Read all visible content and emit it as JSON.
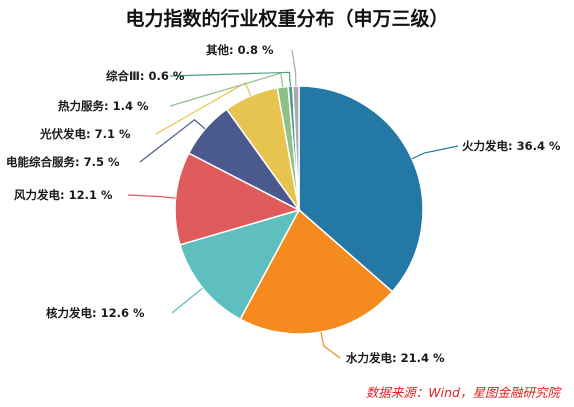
{
  "chart_data": {
    "type": "pie",
    "title": "电力指数的行业权重分布（申万三级）",
    "categories": [
      "火力发电",
      "水力发电",
      "核力发电",
      "风力发电",
      "电能综合服务",
      "光伏发电",
      "热力服务",
      "综合Ⅲ",
      "其他"
    ],
    "values": [
      36.4,
      21.4,
      12.6,
      12.1,
      7.5,
      7.1,
      1.4,
      0.6,
      0.8
    ],
    "labels": [
      "火力发电: 36.4 %",
      "水力发电: 21.4 %",
      "核力发电: 12.6 %",
      "风力发电: 12.1 %",
      "电能综合服务: 7.5 %",
      "光伏发电: 7.1 %",
      "热力服务: 1.4 %",
      "综合Ⅲ: 0.6 %",
      "其他: 0.8 %"
    ],
    "colors": [
      "#2378a6",
      "#f58a1f",
      "#5fbfbf",
      "#e05c5c",
      "#4a5a8f",
      "#e7c450",
      "#8ec08a",
      "#4e9e86",
      "#aaaaaa"
    ],
    "legend": "none"
  },
  "source_note": "数据来源：Wind，星图金融研究院"
}
